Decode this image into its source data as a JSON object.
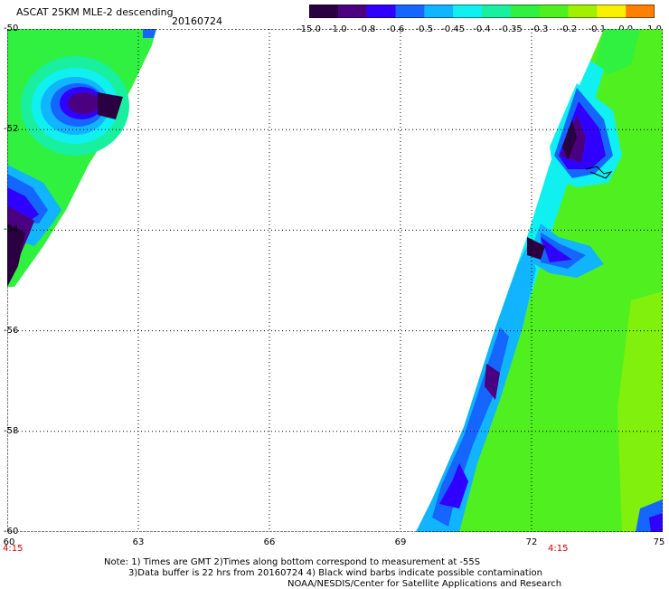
{
  "title": "ASCAT 25KM MLE-2 descending",
  "date": "20160724",
  "colorbar": {
    "tick_labels": [
      "-15.0",
      "-1.0",
      "-0.8",
      "-0.6",
      "-0.5",
      "-0.45",
      "-0.4",
      "-0.35",
      "-0.3",
      "-0.2",
      "-0.1",
      "0.0",
      "1.0"
    ],
    "colors": [
      "#2a0040",
      "#4a0080",
      "#3000ff",
      "#1466ff",
      "#10b4ff",
      "#10f0f0",
      "#18f0a0",
      "#30f040",
      "#50f020",
      "#a0f000",
      "#f8f000",
      "#ff8000",
      "#ff1000"
    ]
  },
  "axes": {
    "lat_labels": [
      "-50",
      "-52",
      "-54",
      "-56",
      "-58",
      "-60"
    ],
    "lon_labels": [
      "60",
      "63",
      "66",
      "69",
      "72",
      "75"
    ],
    "lat_range": [
      -60,
      -50
    ],
    "lon_range": [
      60,
      75
    ]
  },
  "times": [
    "4:15",
    "4:15"
  ],
  "notes": [
    "Note: 1) Times are GMT 2)Times along bottom correspond to measurement at -55S",
    "3)Data buffer is 22 hrs from 20160724 4) Black wind barbs indicate possible contamination",
    "NOAA/NESDIS/Center for Satellite Applications and Research"
  ]
}
